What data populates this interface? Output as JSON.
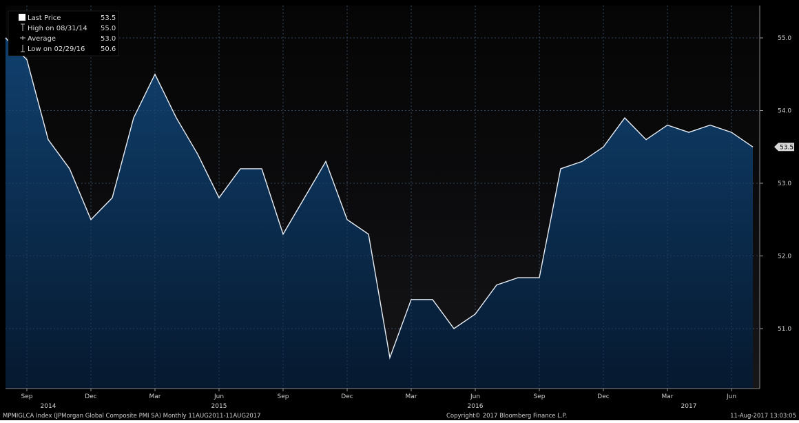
{
  "chart_data": {
    "type": "area",
    "legend": [
      {
        "label": "Last Price",
        "value": "53.5",
        "marker": "square"
      },
      {
        "label": "High on 08/31/14",
        "value": "55.0",
        "marker": "high"
      },
      {
        "label": "Average",
        "value": "53.0",
        "marker": "avg"
      },
      {
        "label": "Low on 02/29/16",
        "value": "50.6",
        "marker": "low"
      }
    ],
    "y_ticks": [
      "55.0",
      "54.0",
      "53.0",
      "52.0",
      "51.0"
    ],
    "y_tick_values": [
      55.0,
      54.0,
      53.0,
      52.0,
      51.0
    ],
    "ylim": [
      50.2,
      55.5
    ],
    "last_price_label": "53.5",
    "x_month_labels": [
      "Sep",
      "Dec",
      "Mar",
      "Jun",
      "Sep",
      "Dec",
      "Mar",
      "Jun",
      "Sep",
      "Dec",
      "Mar",
      "Jun"
    ],
    "x_month_label_index": [
      1,
      4,
      7,
      10,
      13,
      16,
      19,
      22,
      25,
      28,
      31,
      34
    ],
    "x_year_labels": [
      "2014",
      "2015",
      "2016",
      "2017"
    ],
    "x_year_label_index": [
      2,
      10,
      22,
      32
    ],
    "x_gridline_index": [
      1,
      4,
      7,
      10,
      13,
      16,
      19,
      22,
      25,
      28,
      31,
      34
    ],
    "x": [
      "Aug-2014",
      "Sep-2014",
      "Oct-2014",
      "Nov-2014",
      "Dec-2014",
      "Jan-2015",
      "Feb-2015",
      "Mar-2015",
      "Apr-2015",
      "May-2015",
      "Jun-2015",
      "Jul-2015",
      "Aug-2015",
      "Sep-2015",
      "Oct-2015",
      "Nov-2015",
      "Dec-2015",
      "Jan-2016",
      "Feb-2016",
      "Mar-2016",
      "Apr-2016",
      "May-2016",
      "Jun-2016",
      "Jul-2016",
      "Aug-2016",
      "Sep-2016",
      "Oct-2016",
      "Nov-2016",
      "Dec-2016",
      "Jan-2017",
      "Feb-2017",
      "Mar-2017",
      "Apr-2017",
      "May-2017",
      "Jun-2017",
      "Jul-2017"
    ],
    "values": [
      55.0,
      54.7,
      53.6,
      53.2,
      52.5,
      52.8,
      53.9,
      54.5,
      53.9,
      53.4,
      52.8,
      53.2,
      53.2,
      52.3,
      52.8,
      53.3,
      52.5,
      52.3,
      50.6,
      51.4,
      51.4,
      51.0,
      51.2,
      51.6,
      51.7,
      51.7,
      53.2,
      53.3,
      53.5,
      53.9,
      53.6,
      53.8,
      53.7,
      53.8,
      53.7,
      53.5
    ],
    "first_point_prior_value": 54.7,
    "grid": true
  },
  "footer": {
    "left": "MPMIGLCA Index (JPMorgan Global Composite PMI SA) Monthly 11AUG2011-11AUG2017",
    "center": "Copyright© 2017 Bloomberg Finance L.P.",
    "right": "11-Aug-2017 13:03:05"
  },
  "colors": {
    "background": "#000000",
    "area_top": "#0f3a66",
    "area_bottom": "#071c36",
    "line": "#e6eef6",
    "grid": "#5a5a5a"
  }
}
